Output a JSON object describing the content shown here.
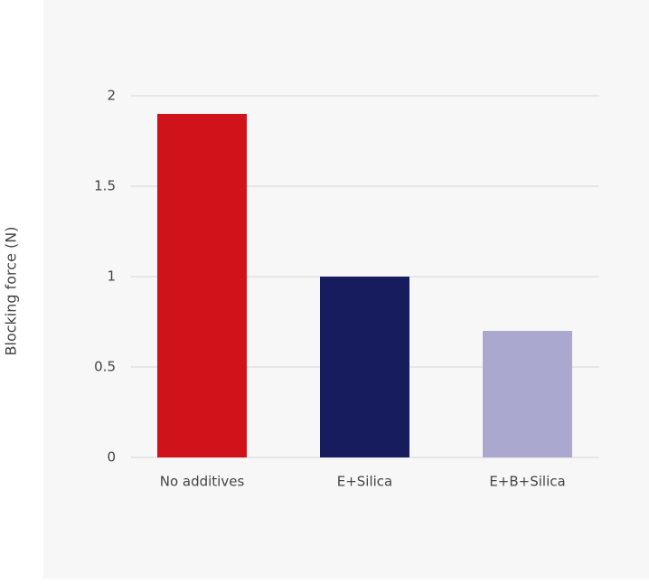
{
  "chart_data": {
    "type": "bar",
    "ylabel": "Blocking force (N)",
    "categories": [
      "No additives",
      "E+Silica",
      "E+B+Silica"
    ],
    "values": [
      1.9,
      1.0,
      0.7
    ],
    "colors": [
      "#d0121b",
      "#171c5e",
      "#aba8cf"
    ],
    "ylim": [
      0,
      2
    ],
    "yticks": [
      0,
      0.5,
      1,
      1.5,
      2
    ],
    "grid": true
  }
}
